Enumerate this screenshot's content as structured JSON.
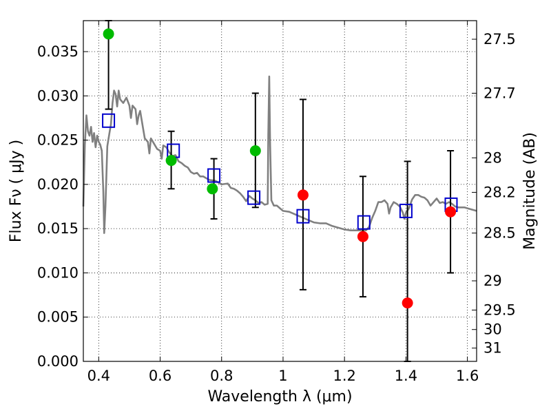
{
  "chart_data": {
    "type": "scatter",
    "xlabel": "Wavelength  λ (μm)",
    "ylabel": "Flux  Fν  ( μJy )",
    "y2label": "Magnitude (AB)",
    "xlim": [
      0.35,
      1.63
    ],
    "ylim": [
      0.0,
      0.0385
    ],
    "grid": true,
    "x_ticks": [
      {
        "value": 0.4,
        "label": "0.4"
      },
      {
        "value": 0.6,
        "label": "0.6"
      },
      {
        "value": 0.8,
        "label": "0.8"
      },
      {
        "value": 1.0,
        "label": "1"
      },
      {
        "value": 1.2,
        "label": "1.2"
      },
      {
        "value": 1.4,
        "label": "1.4"
      },
      {
        "value": 1.6,
        "label": "1.6"
      }
    ],
    "y_ticks": [
      {
        "value": 0.0,
        "label": "0.000"
      },
      {
        "value": 0.005,
        "label": "0.005"
      },
      {
        "value": 0.01,
        "label": "0.010"
      },
      {
        "value": 0.015,
        "label": "0.015"
      },
      {
        "value": 0.02,
        "label": "0.020"
      },
      {
        "value": 0.025,
        "label": "0.025"
      },
      {
        "value": 0.03,
        "label": "0.030"
      },
      {
        "value": 0.035,
        "label": "0.035"
      }
    ],
    "y2_ticks": [
      {
        "label": "27.5",
        "flux": 0.0364
      },
      {
        "label": "27.7",
        "flux": 0.0303
      },
      {
        "label": "28",
        "flux": 0.023
      },
      {
        "label": "28.2",
        "flux": 0.0191
      },
      {
        "label": "28.5",
        "flux": 0.0145
      },
      {
        "label": "29",
        "flux": 0.0091
      },
      {
        "label": "29.5",
        "flux": 0.0058
      },
      {
        "label": "30",
        "flux": 0.0036
      },
      {
        "label": "31",
        "flux": 0.0015
      }
    ],
    "colors": {
      "model": "#808080",
      "green": "#00bb00",
      "red": "#ff0000",
      "box": "#0000cc",
      "errorbar": "#000000"
    },
    "series": [
      {
        "type": "line",
        "points": [
          [
            0.35,
            0.0175
          ],
          [
            0.355,
            0.0245
          ],
          [
            0.36,
            0.0278
          ],
          [
            0.365,
            0.026
          ],
          [
            0.37,
            0.0255
          ],
          [
            0.375,
            0.0265
          ],
          [
            0.38,
            0.0248
          ],
          [
            0.385,
            0.0258
          ],
          [
            0.39,
            0.0242
          ],
          [
            0.395,
            0.0255
          ],
          [
            0.4,
            0.0248
          ],
          [
            0.405,
            0.0245
          ],
          [
            0.41,
            0.0238
          ],
          [
            0.415,
            0.0192
          ],
          [
            0.418,
            0.0145
          ],
          [
            0.422,
            0.0175
          ],
          [
            0.428,
            0.0243
          ],
          [
            0.435,
            0.0258
          ],
          [
            0.44,
            0.0268
          ],
          [
            0.445,
            0.0292
          ],
          [
            0.45,
            0.0306
          ],
          [
            0.455,
            0.0302
          ],
          [
            0.46,
            0.0288
          ],
          [
            0.465,
            0.0306
          ],
          [
            0.47,
            0.0296
          ],
          [
            0.48,
            0.0292
          ],
          [
            0.49,
            0.0298
          ],
          [
            0.5,
            0.0289
          ],
          [
            0.505,
            0.0275
          ],
          [
            0.51,
            0.0289
          ],
          [
            0.52,
            0.0285
          ],
          [
            0.525,
            0.0268
          ],
          [
            0.53,
            0.0278
          ],
          [
            0.535,
            0.0283
          ],
          [
            0.545,
            0.0262
          ],
          [
            0.55,
            0.0252
          ],
          [
            0.56,
            0.0248
          ],
          [
            0.565,
            0.0235
          ],
          [
            0.57,
            0.0252
          ],
          [
            0.58,
            0.0246
          ],
          [
            0.59,
            0.024
          ],
          [
            0.6,
            0.0238
          ],
          [
            0.605,
            0.0229
          ],
          [
            0.61,
            0.0244
          ],
          [
            0.62,
            0.0242
          ],
          [
            0.63,
            0.0236
          ],
          [
            0.64,
            0.0232
          ],
          [
            0.65,
            0.0233
          ],
          [
            0.66,
            0.0226
          ],
          [
            0.67,
            0.0224
          ],
          [
            0.68,
            0.0221
          ],
          [
            0.69,
            0.0219
          ],
          [
            0.7,
            0.0214
          ],
          [
            0.71,
            0.0212
          ],
          [
            0.72,
            0.0213
          ],
          [
            0.73,
            0.0209
          ],
          [
            0.74,
            0.0209
          ],
          [
            0.75,
            0.0207
          ],
          [
            0.76,
            0.0205
          ],
          [
            0.78,
            0.0204
          ],
          [
            0.8,
            0.02
          ],
          [
            0.82,
            0.0201
          ],
          [
            0.83,
            0.0196
          ],
          [
            0.84,
            0.0195
          ],
          [
            0.85,
            0.0193
          ],
          [
            0.86,
            0.019
          ],
          [
            0.87,
            0.0186
          ],
          [
            0.88,
            0.0181
          ],
          [
            0.89,
            0.0187
          ],
          [
            0.9,
            0.0184
          ],
          [
            0.91,
            0.0182
          ],
          [
            0.92,
            0.0179
          ],
          [
            0.93,
            0.018
          ],
          [
            0.94,
            0.0177
          ],
          [
            0.95,
            0.0178
          ],
          [
            0.952,
            0.0255
          ],
          [
            0.955,
            0.0322
          ],
          [
            0.958,
            0.0245
          ],
          [
            0.962,
            0.0182
          ],
          [
            0.97,
            0.0176
          ],
          [
            0.98,
            0.0176
          ],
          [
            0.99,
            0.0173
          ],
          [
            1.0,
            0.017
          ],
          [
            1.02,
            0.0169
          ],
          [
            1.04,
            0.0166
          ],
          [
            1.06,
            0.0163
          ],
          [
            1.08,
            0.016
          ],
          [
            1.1,
            0.0157
          ],
          [
            1.12,
            0.0156
          ],
          [
            1.14,
            0.0156
          ],
          [
            1.16,
            0.0153
          ],
          [
            1.18,
            0.0151
          ],
          [
            1.2,
            0.0149
          ],
          [
            1.22,
            0.0148
          ],
          [
            1.24,
            0.0148
          ],
          [
            1.25,
            0.0148
          ],
          [
            1.26,
            0.0148
          ],
          [
            1.27,
            0.0148
          ],
          [
            1.28,
            0.0152
          ],
          [
            1.29,
            0.0162
          ],
          [
            1.3,
            0.017
          ],
          [
            1.31,
            0.018
          ],
          [
            1.32,
            0.018
          ],
          [
            1.33,
            0.0182
          ],
          [
            1.34,
            0.0178
          ],
          [
            1.345,
            0.0167
          ],
          [
            1.35,
            0.0174
          ],
          [
            1.36,
            0.018
          ],
          [
            1.37,
            0.0178
          ],
          [
            1.38,
            0.0175
          ],
          [
            1.39,
            0.0168
          ],
          [
            1.395,
            0.0161
          ],
          [
            1.4,
            0.0168
          ],
          [
            1.41,
            0.0173
          ],
          [
            1.42,
            0.0183
          ],
          [
            1.43,
            0.0188
          ],
          [
            1.44,
            0.0188
          ],
          [
            1.45,
            0.0186
          ],
          [
            1.46,
            0.0185
          ],
          [
            1.47,
            0.0182
          ],
          [
            1.48,
            0.0176
          ],
          [
            1.49,
            0.018
          ],
          [
            1.5,
            0.0184
          ],
          [
            1.51,
            0.0179
          ],
          [
            1.52,
            0.018
          ],
          [
            1.53,
            0.0178
          ],
          [
            1.54,
            0.018
          ],
          [
            1.55,
            0.0178
          ],
          [
            1.56,
            0.0175
          ],
          [
            1.57,
            0.0174
          ],
          [
            1.58,
            0.0174
          ],
          [
            1.59,
            0.0174
          ],
          [
            1.6,
            0.0173
          ],
          [
            1.61,
            0.0172
          ],
          [
            1.62,
            0.0171
          ],
          [
            1.63,
            0.017
          ]
        ]
      },
      {
        "type": "errorbar",
        "points": [
          {
            "x": 0.432,
            "ylow": 0.0285,
            "yhigh": 0.0385
          },
          {
            "x": 0.636,
            "ylow": 0.0195,
            "yhigh": 0.026
          },
          {
            "x": 0.775,
            "ylow": 0.0161,
            "yhigh": 0.0229
          },
          {
            "x": 0.91,
            "ylow": 0.0174,
            "yhigh": 0.0303
          },
          {
            "x": 1.065,
            "ylow": 0.0081,
            "yhigh": 0.0296
          },
          {
            "x": 1.26,
            "ylow": 0.0073,
            "yhigh": 0.0209
          },
          {
            "x": 1.405,
            "ylow": 0.0,
            "yhigh": 0.0226
          },
          {
            "x": 1.545,
            "ylow": 0.01,
            "yhigh": 0.0238
          }
        ]
      },
      {
        "type": "scatter-box",
        "points": [
          [
            0.432,
            0.0272
          ],
          [
            0.643,
            0.0238
          ],
          [
            0.775,
            0.021
          ],
          [
            0.905,
            0.0185
          ],
          [
            1.065,
            0.0164
          ],
          [
            1.263,
            0.0157
          ],
          [
            1.4,
            0.017
          ],
          [
            1.547,
            0.0177
          ]
        ]
      },
      {
        "type": "scatter-green",
        "points": [
          [
            0.432,
            0.037
          ],
          [
            0.636,
            0.0227
          ],
          [
            0.77,
            0.0195
          ],
          [
            0.91,
            0.0238
          ]
        ]
      },
      {
        "type": "scatter-red",
        "points": [
          [
            1.065,
            0.0188
          ],
          [
            1.26,
            0.0141
          ],
          [
            1.405,
            0.0066
          ],
          [
            1.545,
            0.0169
          ]
        ]
      }
    ]
  }
}
